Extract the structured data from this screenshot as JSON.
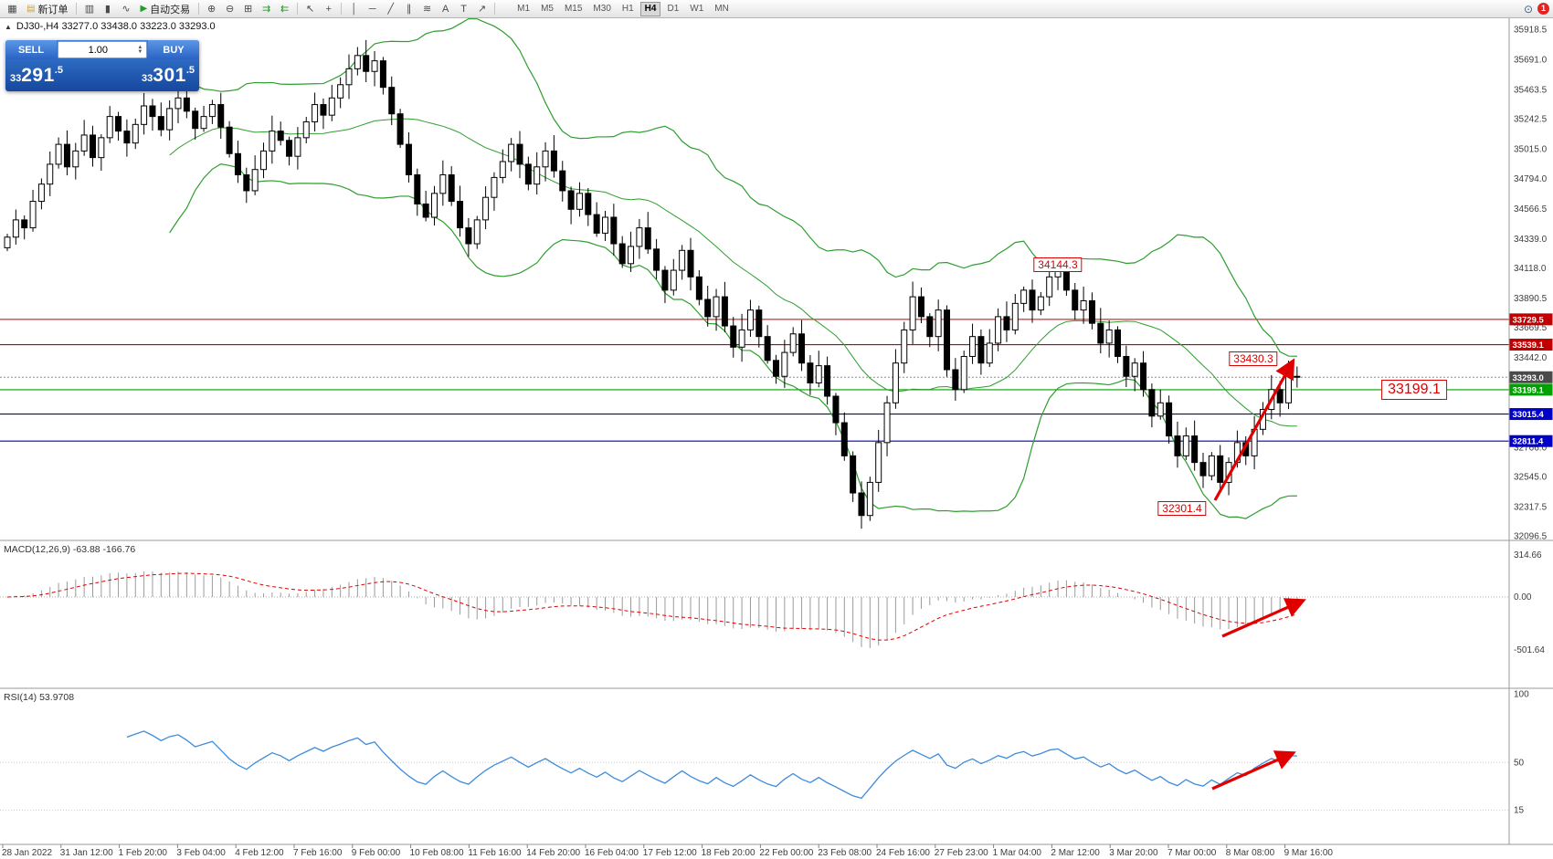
{
  "toolbar": {
    "items": [
      {
        "kind": "icon",
        "name": "chart-window-icon",
        "glyph": "▦"
      },
      {
        "kind": "button",
        "name": "new-order-button",
        "glyph": "▤",
        "glyph_color": "#caa53c",
        "label": "新订单"
      },
      {
        "kind": "sep"
      },
      {
        "kind": "icon",
        "name": "bar-chart-icon",
        "glyph": "▥"
      },
      {
        "kind": "icon",
        "name": "candlestick-chart-icon",
        "glyph": "▮"
      },
      {
        "kind": "icon",
        "name": "line-chart-icon",
        "glyph": "∿"
      },
      {
        "kind": "button",
        "name": "auto-trading-button",
        "glyph": "▶",
        "glyph_color": "#1f9d27",
        "label": "自动交易"
      },
      {
        "kind": "sep"
      },
      {
        "kind": "icon",
        "name": "zoom-in-icon",
        "glyph": "⊕"
      },
      {
        "kind": "icon",
        "name": "zoom-out-icon",
        "glyph": "⊖"
      },
      {
        "kind": "icon",
        "name": "tile-windows-icon",
        "glyph": "⊞"
      },
      {
        "kind": "icon",
        "name": "auto-scroll-icon",
        "glyph": "⇉",
        "glyph_color": "#1f9d27"
      },
      {
        "kind": "icon",
        "name": "chart-shift-icon",
        "glyph": "⇇",
        "glyph_color": "#1f9d27"
      },
      {
        "kind": "sep"
      },
      {
        "kind": "icon",
        "name": "cursor-icon",
        "glyph": "↖"
      },
      {
        "kind": "icon",
        "name": "crosshair-icon",
        "glyph": "+"
      },
      {
        "kind": "sep"
      },
      {
        "kind": "icon",
        "name": "vertical-line-icon",
        "glyph": "│"
      },
      {
        "kind": "icon",
        "name": "horizontal-line-icon",
        "glyph": "─"
      },
      {
        "kind": "icon",
        "name": "trendline-icon",
        "glyph": "╱"
      },
      {
        "kind": "icon",
        "name": "channel-icon",
        "glyph": "∥"
      },
      {
        "kind": "icon",
        "name": "fibonacci-icon",
        "glyph": "≋"
      },
      {
        "kind": "icon",
        "name": "text-icon",
        "glyph": "A"
      },
      {
        "kind": "icon",
        "name": "label-icon",
        "glyph": "T"
      },
      {
        "kind": "icon",
        "name": "arrow-tools-icon",
        "glyph": "↗"
      },
      {
        "kind": "sep"
      }
    ],
    "timeframes": [
      "M1",
      "M5",
      "M15",
      "M30",
      "H1",
      "H4",
      "D1",
      "W1",
      "MN"
    ],
    "active_timeframe": "H4",
    "search_icon_glyph": "⊙",
    "notification_badge": "1"
  },
  "trade_panel": {
    "collapse_icon": "▲",
    "sell_label": "SELL",
    "buy_label": "BUY",
    "volume": "1.00",
    "spin_up_icon": "▲",
    "spin_down_icon": "▼",
    "sell_price": "33291.5",
    "buy_price": "33301.5"
  },
  "chart": {
    "symbol_info": "DJ30-,H4 33277.0 33438.0 33223.0 33293.0",
    "price_axis_labels": [
      35918.5,
      35691.0,
      35463.5,
      35242.5,
      35015.0,
      34794.0,
      34566.5,
      34339.0,
      34118.0,
      33890.5,
      33669.5,
      33442.0,
      32766.0,
      32545.0,
      32317.5,
      32096.5
    ],
    "price_tags": [
      {
        "value": "33729.5",
        "price": 33729.5,
        "color": "#c00000"
      },
      {
        "value": "33539.1",
        "price": 33539.1,
        "color": "#c00000"
      },
      {
        "value": "33293.0",
        "price": 33293.0,
        "color": "#4a4a4a"
      },
      {
        "value": "33199.1",
        "price": 33199.1,
        "color": "#00a000"
      },
      {
        "value": "33015.4",
        "price": 33015.4,
        "color": "#0000c8"
      },
      {
        "value": "32811.4",
        "price": 32811.4,
        "color": "#0000c8"
      }
    ],
    "horizontal_lines": [
      {
        "price": 33729.5,
        "color": "#c00000",
        "style": "solid"
      },
      {
        "price": 33539.1,
        "color": "#c00000",
        "style": "solid"
      },
      {
        "price": 33293.0,
        "color": "#909090",
        "style": "dotted"
      },
      {
        "price": 33199.1,
        "color": "#00a000",
        "style": "solid"
      },
      {
        "price": 33015.4,
        "color": "#0000c8",
        "style": "solid"
      },
      {
        "price": 32811.4,
        "color": "#0000c8",
        "style": "solid"
      }
    ],
    "annotations": [
      {
        "text": "34144.3",
        "price": 34144.3,
        "large": false
      },
      {
        "text": "33430.3",
        "price": 33430.3,
        "large": false
      },
      {
        "text": "33199.1",
        "price": 33199.1,
        "large": true
      },
      {
        "text": "32301.4",
        "price": 32301.4,
        "large": false
      }
    ]
  },
  "indicators": {
    "macd": {
      "label": "MACD(12,26,9) -63.88 -166.76",
      "axis_labels": [
        "314.66",
        "0.00",
        "-501.64"
      ],
      "fast": 12,
      "slow": 26,
      "signal": 9,
      "value": "-63.88",
      "signal_value": "-166.76"
    },
    "rsi": {
      "label": "RSI(14) 53.9708",
      "axis_labels": [
        100,
        50,
        15
      ],
      "period": 14,
      "value": "53.9708"
    }
  },
  "chart_data": {
    "type": "candlestick",
    "symbol": "DJ30-",
    "timeframe": "H4",
    "ohlc_current": {
      "open": 33277.0,
      "high": 33438.0,
      "low": 33223.0,
      "close": 33293.0
    },
    "price_range": [
      32096.5,
      35918.5
    ],
    "closes": [
      34350,
      34480,
      34420,
      34620,
      34750,
      34900,
      35050,
      34880,
      35000,
      35120,
      34950,
      35100,
      35260,
      35150,
      35060,
      35200,
      35340,
      35260,
      35160,
      35320,
      35400,
      35300,
      35170,
      35260,
      35350,
      35180,
      34980,
      34820,
      34700,
      34860,
      35000,
      35150,
      35080,
      34960,
      35100,
      35220,
      35350,
      35270,
      35400,
      35500,
      35620,
      35720,
      35600,
      35680,
      35480,
      35280,
      35050,
      34820,
      34600,
      34500,
      34680,
      34820,
      34620,
      34420,
      34300,
      34480,
      34650,
      34800,
      34920,
      35050,
      34900,
      34750,
      34880,
      35000,
      34850,
      34700,
      34560,
      34680,
      34520,
      34380,
      34500,
      34300,
      34150,
      34280,
      34420,
      34260,
      34100,
      33950,
      34100,
      34250,
      34050,
      33880,
      33750,
      33900,
      33680,
      33520,
      33650,
      33800,
      33600,
      33420,
      33300,
      33480,
      33620,
      33400,
      33250,
      33380,
      33150,
      32950,
      32700,
      32420,
      32250,
      32500,
      32800,
      33100,
      33400,
      33650,
      33900,
      33750,
      33600,
      33800,
      33350,
      33200,
      33450,
      33600,
      33400,
      33550,
      33750,
      33650,
      33850,
      33950,
      33800,
      33900,
      34050,
      34100,
      33950,
      33800,
      33870,
      33700,
      33550,
      33650,
      33450,
      33300,
      33400,
      33200,
      33000,
      33100,
      32850,
      32700,
      32850,
      32650,
      32550,
      32700,
      32500,
      32650,
      32800,
      32700,
      32900,
      33050,
      33200,
      33100,
      33300,
      33293
    ],
    "overlays": {
      "bollinger_bands": {
        "period": 20,
        "deviation": 2,
        "color": "#2e9e2e"
      }
    },
    "sub_indicators": [
      "MACD(12,26,9)",
      "RSI(14)"
    ],
    "time_labels": [
      "28 Jan 2022",
      "31 Jan 12:00",
      "1 Feb 20:00",
      "3 Feb 04:00",
      "4 Feb 12:00",
      "7 Feb 16:00",
      "9 Feb 00:00",
      "10 Feb 08:00",
      "11 Feb 16:00",
      "14 Feb 20:00",
      "16 Feb 04:00",
      "17 Feb 12:00",
      "18 Feb 20:00",
      "22 Feb 00:00",
      "23 Feb 08:00",
      "24 Feb 16:00",
      "27 Feb 23:00",
      "1 Mar 04:00",
      "2 Mar 12:00",
      "3 Mar 20:00",
      "7 Mar 00:00",
      "8 Mar 08:00",
      "9 Mar 16:00"
    ]
  }
}
